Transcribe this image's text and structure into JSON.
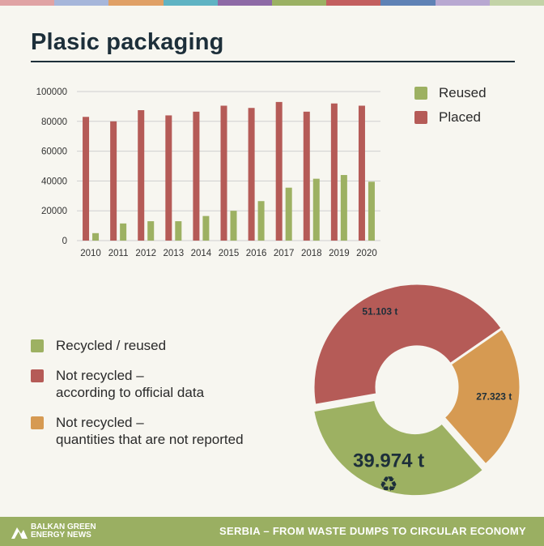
{
  "title": "Plasic packaging",
  "top_stripes": [
    "#e0a3a4",
    "#a6b6da",
    "#e0a066",
    "#5fb3c3",
    "#8e6aa6",
    "#9bb163",
    "#c35f5f",
    "#5f82b5",
    "#b8a8d1",
    "#c3d3a7"
  ],
  "bar_legend": [
    {
      "label": "Reused",
      "color": "#9db162"
    },
    {
      "label": "Placed",
      "color": "#b55b57"
    }
  ],
  "chart_data": [
    {
      "type": "bar",
      "categories": [
        "2010",
        "2011",
        "2012",
        "2013",
        "2014",
        "2015",
        "2016",
        "2017",
        "2018",
        "2019",
        "2020"
      ],
      "series": [
        {
          "name": "Placed",
          "color": "#b55b57",
          "values": [
            83000,
            80000,
            87500,
            84000,
            86500,
            90500,
            89000,
            93000,
            86500,
            92000,
            90500
          ]
        },
        {
          "name": "Reused",
          "color": "#9db162",
          "values": [
            5000,
            11500,
            13000,
            13000,
            16500,
            20000,
            26500,
            35500,
            41500,
            44000,
            39500
          ]
        }
      ],
      "yticks": [
        "0",
        "20000",
        "40000",
        "60000",
        "80000",
        "100000"
      ],
      "ylim": [
        0,
        100000
      ],
      "grid": true,
      "legend": "right"
    },
    {
      "type": "pie",
      "donut": true,
      "slices": [
        {
          "label": "Recycled / reused",
          "value": 39974,
          "text": "39.974 t",
          "color": "#9db162",
          "exploded": true
        },
        {
          "label": "Not recycled – according to official data",
          "value": 51103,
          "text": "51.103 t",
          "color": "#b55b57"
        },
        {
          "label": "Not recycled – quantities that are not reported",
          "value": 27323,
          "text": "27.323 t",
          "color": "#d69a52"
        }
      ]
    }
  ],
  "pie_legend": [
    {
      "lines": [
        "Recycled / reused"
      ],
      "color": "#9db162"
    },
    {
      "lines": [
        "Not recycled –",
        "according to official data"
      ],
      "color": "#b55b57"
    },
    {
      "lines": [
        "Not recycled –",
        "quantities that are not reported"
      ],
      "color": "#d69a52"
    }
  ],
  "recycle_icon": "♻",
  "footer": {
    "logo_line1": "BALKAN GREEN",
    "logo_line2": "ENERGY NEWS",
    "tagline": "SERBIA – FROM WASTE DUMPS TO CIRCULAR ECONOMY"
  }
}
